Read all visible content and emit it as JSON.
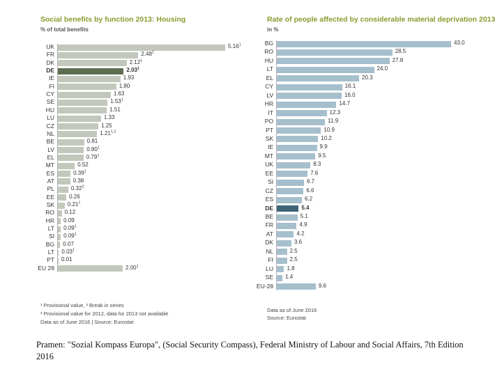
{
  "chart_data": [
    {
      "type": "bar",
      "orientation": "horizontal",
      "title": "Social benefits by function 2013: Housing",
      "subtitle": "% of total benefits",
      "xlim": [
        0,
        5.16
      ],
      "highlight": "DE",
      "categories": [
        "UK",
        "FR",
        "DK",
        "DE",
        "IE",
        "FI",
        "CY",
        "SE",
        "HU",
        "LU",
        "CZ",
        "NL",
        "BE",
        "LV",
        "EL",
        "MT",
        "ES",
        "AT",
        "PL",
        "EE",
        "SK",
        "RO",
        "HR",
        "LT",
        "SI",
        "BG",
        "LT",
        "PT",
        "EU 28"
      ],
      "values": [
        5.16,
        2.48,
        2.12,
        2.03,
        1.93,
        1.8,
        1.63,
        1.53,
        1.51,
        1.33,
        1.25,
        1.21,
        0.81,
        0.8,
        0.79,
        0.52,
        0.39,
        0.38,
        0.32,
        0.26,
        0.21,
        0.12,
        0.09,
        0.09,
        0.09,
        0.07,
        0.03,
        0.01,
        2.0
      ],
      "value_labels": [
        "5.16",
        "2.48",
        "2.12",
        "2.03",
        "1.93",
        "1.80",
        "1.63",
        "1.53",
        "1.51",
        "1.33",
        "1.25",
        "1.21",
        "0.81",
        "0.80",
        "0.79",
        "0.52",
        "0.39",
        "0.38",
        "0.32",
        "0.26",
        "0.21",
        "0.12",
        "0.09",
        "0.09",
        "0.09",
        "0.07",
        "0.03",
        "0.01",
        "2.00"
      ],
      "footnote_marks": [
        "1",
        "1",
        "1",
        "1",
        "",
        "",
        "",
        "1",
        "",
        "",
        "",
        "1,2",
        "",
        "1",
        "1",
        "",
        "1",
        "",
        "2",
        "",
        "1",
        "",
        "",
        "1",
        "1",
        "",
        "1",
        "",
        "1"
      ],
      "footnotes": [
        "¹ Provisional value, ² Break in series",
        "³ Provisional value for 2012, data for 2013 not available",
        "Data as of June 2016 | Source: Eurostat"
      ]
    },
    {
      "type": "bar",
      "orientation": "horizontal",
      "title": "Rate of people affected by considerable material deprivation 2013",
      "subtitle": "in %",
      "xlim": [
        0,
        43.0
      ],
      "highlight": "DE",
      "categories": [
        "BG",
        "RO",
        "HU",
        "LT",
        "EL",
        "CY",
        "LV",
        "HR",
        "IT",
        "PO",
        "PT",
        "SK",
        "IE",
        "MT",
        "UK",
        "EE",
        "SI",
        "CZ",
        "ES",
        "DE",
        "BE",
        "FR",
        "AT",
        "DK",
        "NL",
        "FI",
        "LU",
        "SE",
        "EU-28"
      ],
      "values": [
        43.0,
        28.5,
        27.8,
        24.0,
        20.3,
        16.1,
        16.0,
        14.7,
        12.3,
        11.9,
        10.9,
        10.2,
        9.9,
        9.5,
        8.3,
        7.6,
        6.7,
        6.6,
        6.2,
        5.4,
        5.1,
        4.9,
        4.2,
        3.6,
        2.5,
        2.5,
        1.8,
        1.4,
        9.6
      ],
      "value_labels": [
        "43.0",
        "28.5",
        "27.8",
        "24.0",
        "20.3",
        "16.1",
        "16.0",
        "14.7",
        "12.3",
        "11.9",
        "10.9",
        "10.2",
        "9.9",
        "9.5",
        "8.3",
        "7.6",
        "6.7",
        "6.6",
        "6.2",
        "5.4",
        "5.1",
        "4.9",
        "4.2",
        "3.6",
        "2.5",
        "2.5",
        "1.8",
        "1.4",
        "9.6"
      ],
      "footnotes": [
        "Data as of June 2016",
        "Source: Eurostat"
      ]
    }
  ],
  "colors": {
    "title": "#8a9a2e",
    "left_bar": "#c2c8bb",
    "left_highlight": "#5c6e4f",
    "right_bar": "#a6bfcd",
    "right_highlight": "#3f6478"
  },
  "source_text": "Pramen: \"Sozial Kompass Europa\", (Social Security Compass), Federal Ministry of Labour and Social Affairs, 7th Edition 2016"
}
